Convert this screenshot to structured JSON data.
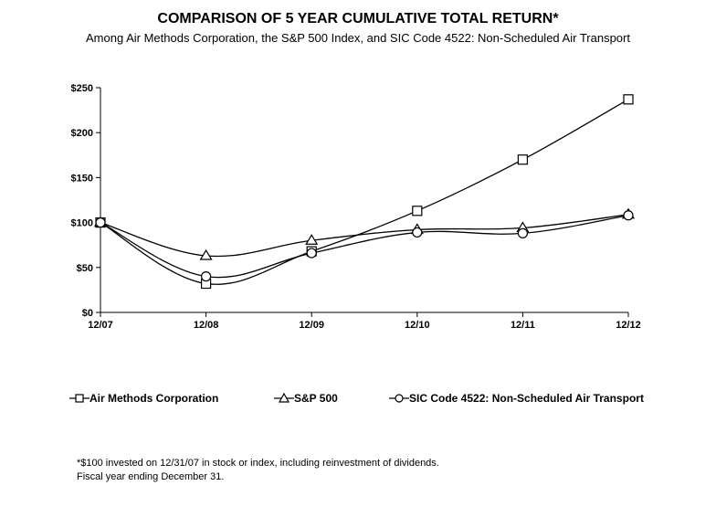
{
  "chart_data": {
    "type": "line",
    "title": "COMPARISON OF 5 YEAR CUMULATIVE TOTAL RETURN*",
    "subtitle": "Among Air Methods Corporation, the S&P 500 Index, and SIC Code 4522: Non-Scheduled Air Transport",
    "categories": [
      "12/07",
      "12/08",
      "12/09",
      "12/10",
      "12/11",
      "12/12"
    ],
    "y_ticks": [
      "$0",
      "$50",
      "$100",
      "$150",
      "$200",
      "$250"
    ],
    "ylim": [
      0,
      250
    ],
    "grid": false,
    "legend_position": "bottom",
    "series": [
      {
        "name": "Air Methods Corporation",
        "marker": "square",
        "values": [
          100,
          32,
          68,
          113,
          170,
          237
        ]
      },
      {
        "name": "S&P 500",
        "marker": "triangle",
        "values": [
          100,
          63,
          80,
          92,
          94,
          109
        ]
      },
      {
        "name": "SIC Code 4522: Non-Scheduled Air Transport",
        "marker": "circle",
        "values": [
          100,
          40,
          66,
          89,
          88,
          108
        ]
      }
    ],
    "footnote": [
      "*$100 invested on 12/31/07 in stock or index, including reinvestment of dividends.",
      "Fiscal year ending December 31."
    ]
  }
}
